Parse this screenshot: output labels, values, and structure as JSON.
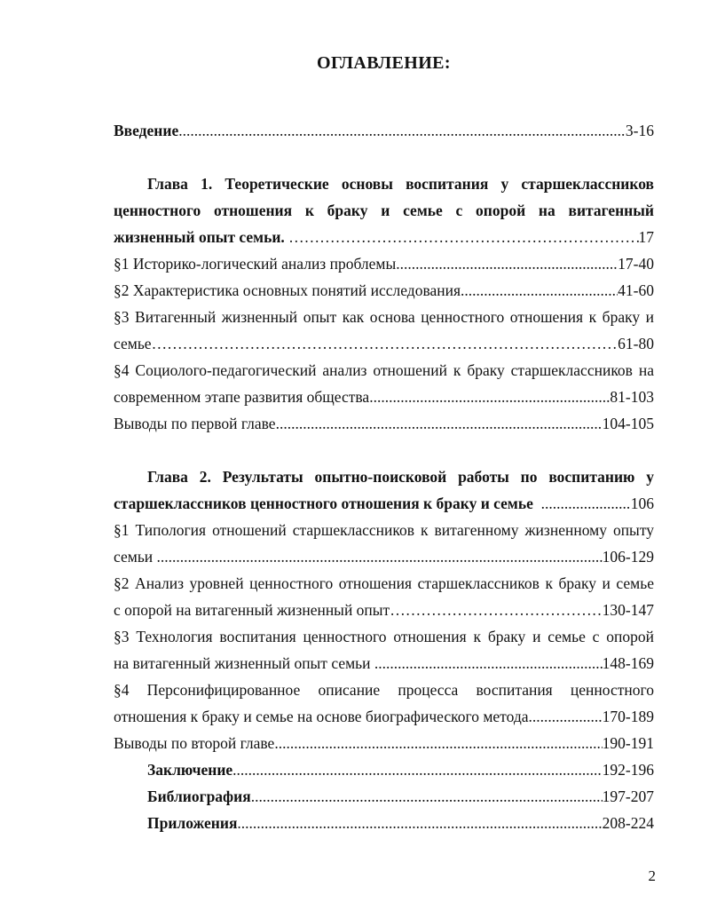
{
  "page": {
    "title": "ОГЛАВЛЕНИЕ:",
    "page_number": "2"
  },
  "toc": {
    "entries": [
      {
        "bold": true,
        "indent": false,
        "gap_before": false,
        "leader": "dots",
        "lines": [],
        "last": "Введение",
        "pages": "3-16"
      },
      {
        "bold": true,
        "indent": true,
        "gap_before": true,
        "leader": "ellipsis",
        "lines": [
          "Глава 1. Теоретические основы воспитания у старшеклассников",
          "ценностного отношения к браку и семье с опорой на витагенный"
        ],
        "last": "жизненный опыт семьи. ",
        "pages": "17"
      },
      {
        "bold": false,
        "indent": false,
        "gap_before": false,
        "leader": "dots",
        "lines": [],
        "last": "§1 Историко-логический анализ проблемы",
        "pages": "17-40"
      },
      {
        "bold": false,
        "indent": false,
        "gap_before": false,
        "leader": "dots",
        "lines": [],
        "last": "§2 Характеристика основных понятий исследования",
        "pages": "41-60"
      },
      {
        "bold": false,
        "indent": false,
        "gap_before": false,
        "leader": "ellipsis",
        "lines": [
          "§3 Витагенный жизненный опыт как основа ценностного отношения к браку и"
        ],
        "last": "семье",
        "pages": "61-80"
      },
      {
        "bold": false,
        "indent": false,
        "gap_before": false,
        "leader": "dots",
        "lines": [
          "§4 Социолого-педагогический анализ отношений к браку старшеклассников на"
        ],
        "last": "современном этапе развития общества",
        "pages": "81-103"
      },
      {
        "bold": false,
        "indent": false,
        "gap_before": false,
        "leader": "dots",
        "lines": [],
        "last": "Выводы по первой главе",
        "pages": "104-105"
      },
      {
        "bold": true,
        "indent": true,
        "gap_before": true,
        "leader": "dots",
        "lines": [
          "Глава 2. Результаты опытно-поисковой работы по воспитанию у"
        ],
        "last": "старшеклассников ценностного отношения к браку и семье  ",
        "pages": "106"
      },
      {
        "bold": false,
        "indent": false,
        "gap_before": false,
        "leader": "dots",
        "lines": [
          "§1 Типология отношений старшеклассников к витагенному жизненному опыту"
        ],
        "last": "семьи ",
        "pages": "106-129"
      },
      {
        "bold": false,
        "indent": false,
        "gap_before": false,
        "leader": "ellipsis",
        "lines": [
          "§2 Анализ уровней ценностного отношения старшеклассников к браку и семье"
        ],
        "last": "с опорой на витагенный жизненный опыт",
        "pages": "130-147"
      },
      {
        "bold": false,
        "indent": false,
        "gap_before": false,
        "leader": "dots",
        "lines": [
          "§3 Технология воспитания ценностного отношения к браку и семье с опорой"
        ],
        "last": "на витагенный жизненный опыт семьи ",
        "pages": "148-169"
      },
      {
        "bold": false,
        "indent": false,
        "gap_before": false,
        "leader": "dots",
        "lines": [
          "§4 Персонифицированное описание процесса воспитания ценностного"
        ],
        "last": "отношения к браку и семье на основе биографического метода",
        "pages": "170-189"
      },
      {
        "bold": false,
        "indent": false,
        "gap_before": false,
        "leader": "dots",
        "lines": [],
        "last": "Выводы по второй главе",
        "pages": "190-191"
      },
      {
        "bold": true,
        "indent": true,
        "gap_before": false,
        "leader": "dots",
        "lines": [],
        "last": "Заключение",
        "pages": "192-196"
      },
      {
        "bold": true,
        "indent": true,
        "gap_before": false,
        "leader": "dots",
        "lines": [],
        "last": "Библиография",
        "pages": "197-207"
      },
      {
        "bold": true,
        "indent": true,
        "gap_before": false,
        "leader": "dots",
        "lines": [],
        "last": "Приложения",
        "pages": "208-224"
      }
    ]
  }
}
